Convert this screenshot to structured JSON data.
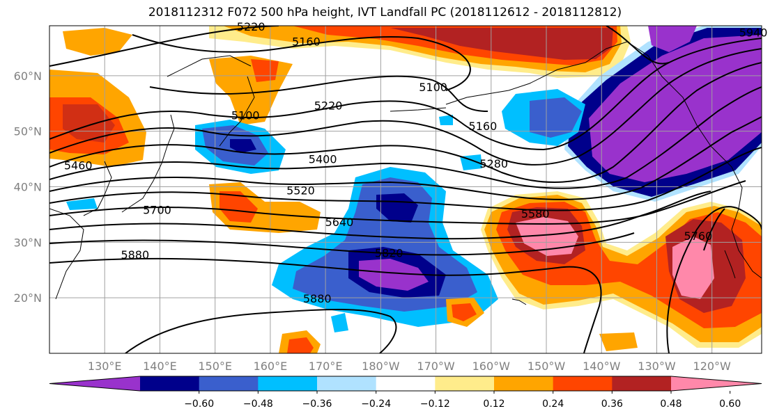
{
  "title": "2018112312 F072 500 hPa height, IVT Landfall PC (2018112612 - 2018112812)",
  "lat_labels": [
    {
      "text": "60°N",
      "lat": 60
    },
    {
      "text": "50°N",
      "lat": 50
    },
    {
      "text": "40°N",
      "lat": 40
    },
    {
      "text": "30°N",
      "lat": 30
    },
    {
      "text": "20°N",
      "lat": 20
    }
  ],
  "lon_labels": [
    {
      "text": "130°E",
      "lon": 130
    },
    {
      "text": "140°E",
      "lon": 140
    },
    {
      "text": "150°E",
      "lon": 150
    },
    {
      "text": "160°E",
      "lon": 160
    },
    {
      "text": "170°E",
      "lon": 170
    },
    {
      "text": "180°W",
      "lon": 180
    },
    {
      "text": "170°W",
      "lon": 190
    },
    {
      "text": "160°W",
      "lon": 200
    },
    {
      "text": "150°W",
      "lon": 210
    },
    {
      "text": "140°W",
      "lon": 220
    },
    {
      "text": "130°W",
      "lon": 230
    },
    {
      "text": "120°W",
      "lon": 240
    }
  ],
  "map_extent": {
    "lon_min": 120,
    "lon_max": 249,
    "lat_min": 10,
    "lat_max": 69
  },
  "contour_labels": [
    {
      "text": "5220",
      "lon": 156.5,
      "lat": 68.7
    },
    {
      "text": "5160",
      "lon": 166.5,
      "lat": 66.0
    },
    {
      "text": "5100",
      "lon": 189.5,
      "lat": 57.8
    },
    {
      "text": "5220",
      "lon": 170.5,
      "lat": 54.5
    },
    {
      "text": "5100",
      "lon": 155.5,
      "lat": 52.7
    },
    {
      "text": "5160",
      "lon": 198.5,
      "lat": 50.8
    },
    {
      "text": "5460",
      "lon": 125.2,
      "lat": 43.7
    },
    {
      "text": "5400",
      "lon": 169.5,
      "lat": 44.8
    },
    {
      "text": "5280",
      "lon": 200.5,
      "lat": 44.0
    },
    {
      "text": "5520",
      "lon": 165.5,
      "lat": 39.2
    },
    {
      "text": "5700",
      "lon": 139.5,
      "lat": 35.7
    },
    {
      "text": "5580",
      "lon": 208.0,
      "lat": 35.0
    },
    {
      "text": "5640",
      "lon": 172.5,
      "lat": 33.5
    },
    {
      "text": "5760",
      "lon": 237.5,
      "lat": 31.0
    },
    {
      "text": "5880",
      "lon": 135.5,
      "lat": 27.6
    },
    {
      "text": "5820",
      "lon": 181.5,
      "lat": 27.9
    },
    {
      "text": "5880",
      "lon": 168.5,
      "lat": 19.7
    },
    {
      "text": "5940",
      "lon": 247.5,
      "lat": 67.6
    }
  ],
  "colorbar": {
    "colors": [
      "#9932cc",
      "#00008b",
      "#3a5fcd",
      "#00bfff",
      "#b0e2ff",
      "#ffffff",
      "#ffec8b",
      "#ffa500",
      "#ff4500",
      "#b22222",
      "#ff88aa"
    ],
    "labels": [
      "−0.60",
      "−0.48",
      "−0.36",
      "−0.24",
      "−0.12",
      "0.12",
      "0.24",
      "0.36",
      "0.48",
      "0.60"
    ]
  }
}
